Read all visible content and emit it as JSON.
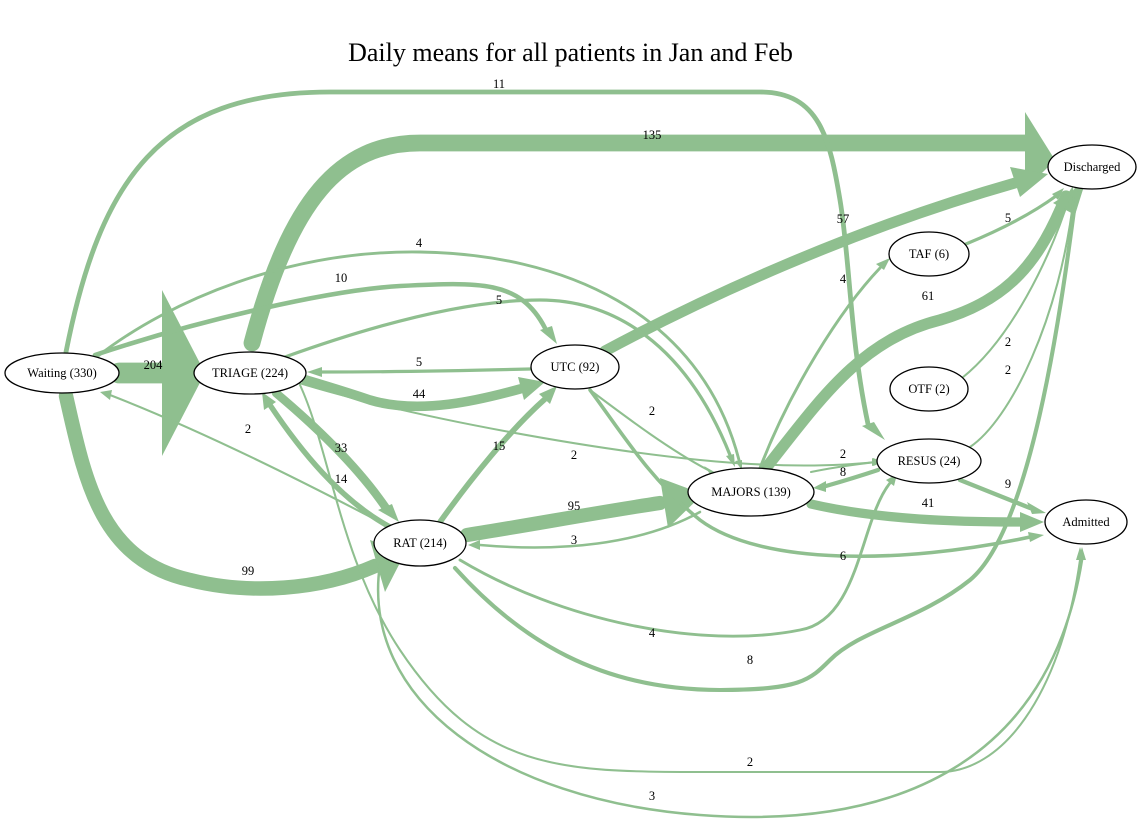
{
  "title": "Daily means for all patients in Jan and Feb",
  "colors": {
    "edge": "#8fbf8f",
    "node_stroke": "#000000"
  },
  "nodes": [
    {
      "id": "waiting",
      "label": "Waiting (330)"
    },
    {
      "id": "triage",
      "label": "TRIAGE (224)"
    },
    {
      "id": "utc",
      "label": "UTC (92)"
    },
    {
      "id": "rat",
      "label": "RAT (214)"
    },
    {
      "id": "majors",
      "label": "MAJORS (139)"
    },
    {
      "id": "taf",
      "label": "TAF (6)"
    },
    {
      "id": "otf",
      "label": "OTF (2)"
    },
    {
      "id": "resus",
      "label": "RESUS (24)"
    },
    {
      "id": "discharged",
      "label": "Discharged"
    },
    {
      "id": "admitted",
      "label": "Admitted"
    }
  ],
  "edges": [
    {
      "id": "waiting-triage",
      "from": "waiting",
      "to": "triage",
      "value": 204,
      "label": "204"
    },
    {
      "id": "triage-discharged",
      "from": "triage",
      "to": "discharged",
      "value": 135,
      "label": "135"
    },
    {
      "id": "waiting-rat",
      "from": "waiting",
      "to": "rat",
      "value": 99,
      "label": "99"
    },
    {
      "id": "rat-majors",
      "from": "rat",
      "to": "majors",
      "value": 95,
      "label": "95"
    },
    {
      "id": "majors-discharged",
      "from": "majors",
      "to": "discharged",
      "value": 61,
      "label": "61"
    },
    {
      "id": "utc-discharged",
      "from": "utc",
      "to": "discharged",
      "value": 57,
      "label": "57"
    },
    {
      "id": "triage-utc",
      "from": "triage",
      "to": "utc",
      "value": 44,
      "label": "44"
    },
    {
      "id": "majors-admitted",
      "from": "majors",
      "to": "admitted",
      "value": 41,
      "label": "41"
    },
    {
      "id": "triage-rat",
      "from": "triage",
      "to": "rat",
      "value": 33,
      "label": "33"
    },
    {
      "id": "rat-utc",
      "from": "rat",
      "to": "utc",
      "value": 15,
      "label": "15"
    },
    {
      "id": "rat-triage",
      "from": "rat",
      "to": "triage",
      "value": 14,
      "label": "14"
    },
    {
      "id": "waiting-resus",
      "from": "waiting",
      "to": "resus",
      "value": 11,
      "label": "11"
    },
    {
      "id": "waiting-utc",
      "from": "waiting",
      "to": "utc",
      "value": 10,
      "label": "10"
    },
    {
      "id": "resus-admitted",
      "from": "resus",
      "to": "admitted",
      "value": 9,
      "label": "9"
    },
    {
      "id": "rat-discharged",
      "from": "rat",
      "to": "discharged",
      "value": 8,
      "label": "8"
    },
    {
      "id": "resus-majors",
      "from": "resus",
      "to": "majors",
      "value": 8,
      "label": "8"
    },
    {
      "id": "utc-admitted",
      "from": "utc",
      "to": "admitted",
      "value": 6,
      "label": "6"
    },
    {
      "id": "utc-triage",
      "from": "utc",
      "to": "triage",
      "value": 5,
      "label": "5"
    },
    {
      "id": "triage-majors",
      "from": "triage",
      "to": "majors",
      "value": 5,
      "label": "5"
    },
    {
      "id": "taf-discharged",
      "from": "taf",
      "to": "discharged",
      "value": 5,
      "label": "5"
    },
    {
      "id": "waiting-majors",
      "from": "waiting",
      "to": "majors",
      "value": 4,
      "label": "4"
    },
    {
      "id": "majors-taf",
      "from": "majors",
      "to": "taf",
      "value": 4,
      "label": "4"
    },
    {
      "id": "rat-resus",
      "from": "rat",
      "to": "resus",
      "value": 4,
      "label": "4"
    },
    {
      "id": "majors-rat",
      "from": "majors",
      "to": "rat",
      "value": 3,
      "label": "3"
    },
    {
      "id": "rat-admitted",
      "from": "rat",
      "to": "admitted",
      "value": 3,
      "label": "3"
    },
    {
      "id": "triage-waiting",
      "from": "triage",
      "to": "waiting",
      "value": 2,
      "label": "2"
    },
    {
      "id": "utc-majors",
      "from": "utc",
      "to": "majors",
      "value": 2,
      "label": "2"
    },
    {
      "id": "triage-resus",
      "from": "triage",
      "to": "resus",
      "value": 2,
      "label": "2"
    },
    {
      "id": "majors-resus",
      "from": "majors",
      "to": "resus",
      "value": 2,
      "label": "2"
    },
    {
      "id": "otf-discharged",
      "from": "otf",
      "to": "discharged",
      "value": 2,
      "label": "2"
    },
    {
      "id": "resus-discharged",
      "from": "resus",
      "to": "discharged",
      "value": 2,
      "label": "2"
    },
    {
      "id": "triage-admitted",
      "from": "triage",
      "to": "admitted",
      "value": 2,
      "label": "2"
    }
  ]
}
